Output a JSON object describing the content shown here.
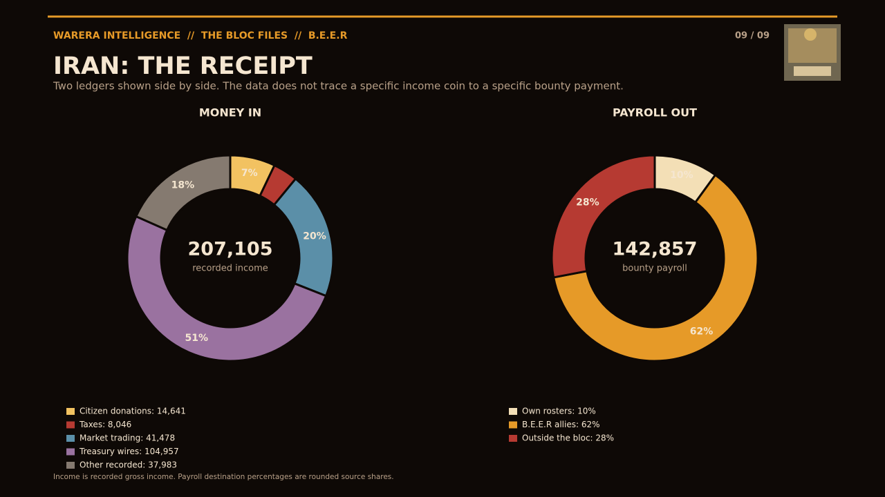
{
  "header": {
    "kicker": "WARERA INTELLIGENCE  //  THE BLOC FILES  //  B.E.E.R",
    "page": "09 / 09",
    "title": "IRAN: THE RECEIPT",
    "subtitle": "Two ledgers shown side by side. The data does not trace a specific income coin to a specific bounty payment."
  },
  "chart_data": [
    {
      "type": "donut",
      "title": "MONEY IN",
      "center_value": "207,105",
      "center_label": "recorded income",
      "categories": [
        "Citizen donations: 14,641",
        "Taxes: 8,046",
        "Market trading: 41,478",
        "Treasury wires: 104,957",
        "Other recorded: 37,983"
      ],
      "values": [
        14641,
        8046,
        41478,
        104957,
        37983
      ],
      "value_labels": [
        "7%",
        null,
        "20%",
        "51%",
        "18%"
      ],
      "colors": [
        "#f2c261",
        "#b63a32",
        "#5b8fa8",
        "#9a72a0",
        "#857a70"
      ]
    },
    {
      "type": "donut",
      "title": "PAYROLL OUT",
      "center_value": "142,857",
      "center_label": "bounty payroll",
      "categories": [
        "Own rosters: 10%",
        "B.E.E.R allies: 62%",
        "Outside the bloc: 28%"
      ],
      "values": [
        10,
        62,
        28
      ],
      "value_labels": [
        "10%",
        "62%",
        "28%"
      ],
      "colors": [
        "#f3dfb6",
        "#e69a28",
        "#b63a32"
      ]
    }
  ],
  "footnote": "Income is recorded gross income. Payroll destination percentages are rounded source shares."
}
